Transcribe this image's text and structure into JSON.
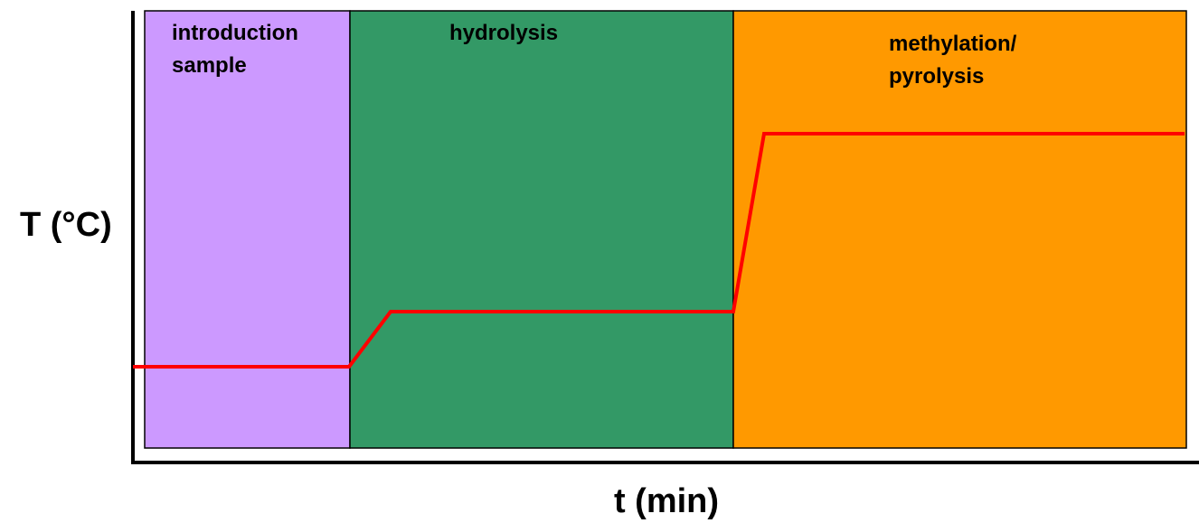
{
  "diagram": {
    "y_axis_label": "T (°C)",
    "x_axis_label": "t (min)",
    "phases": [
      {
        "lines": [
          "introduction",
          "sample"
        ]
      },
      {
        "lines": [
          "hydrolysis"
        ]
      },
      {
        "lines": [
          "methylation/",
          "pyrolysis"
        ]
      }
    ]
  }
}
